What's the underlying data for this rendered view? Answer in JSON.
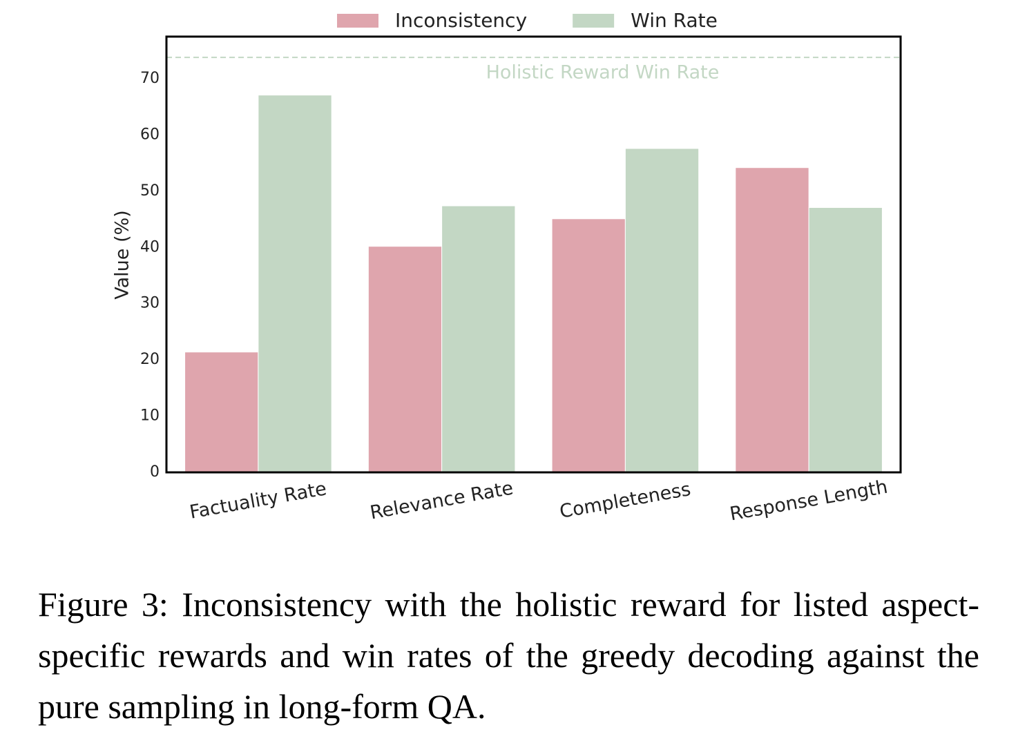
{
  "chart_data": {
    "type": "bar",
    "y_label": "Value (%)",
    "categories": [
      "Factuality Rate",
      "Relevance Rate",
      "Completeness",
      "Response Length"
    ],
    "series": [
      {
        "name": "Inconsistency",
        "color": "#dfa5ad",
        "values": [
          21.4,
          40.2,
          45.1,
          54.2
        ]
      },
      {
        "name": "Win Rate",
        "color": "#c3d7c4",
        "values": [
          67.1,
          47.4,
          57.6,
          47.1
        ]
      }
    ],
    "ylim": [
      0,
      77.5
    ],
    "yticks": [
      0,
      10,
      20,
      30,
      40,
      50,
      60,
      70
    ],
    "grid": false,
    "legend": "top",
    "reference_line": {
      "value": 73.8,
      "label": "Holistic Reward Win Rate",
      "color": "#c3d7c4"
    }
  },
  "caption": "Figure 3: Inconsistency with the holistic reward for listed aspect-specific rewards and win rates of the greedy decoding against the pure sampling in long-form QA."
}
